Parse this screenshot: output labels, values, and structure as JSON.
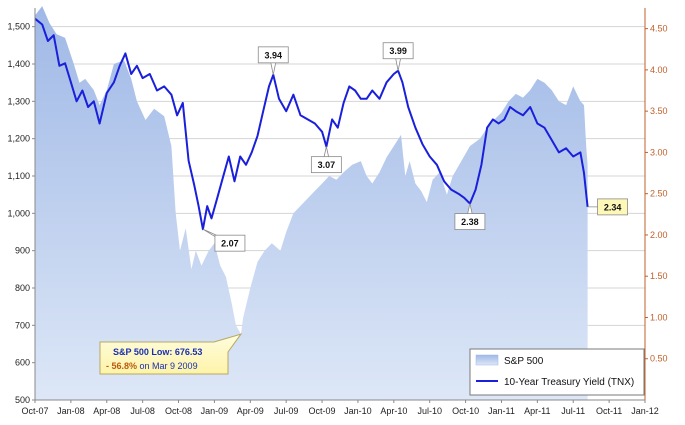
{
  "chart_data": {
    "type": "area+line",
    "x_tick_labels": [
      "Oct-07",
      "Jan-08",
      "Apr-08",
      "Jul-08",
      "Oct-08",
      "Jan-09",
      "Apr-09",
      "Jul-09",
      "Oct-09",
      "Jan-10",
      "Apr-10",
      "Jul-10",
      "Oct-10",
      "Jan-11",
      "Apr-11",
      "Jul-11",
      "Oct-11",
      "Jan-12"
    ],
    "left_axis": {
      "ticks": [
        "500",
        "600",
        "700",
        "800",
        "900",
        "1,000",
        "1,100",
        "1,200",
        "1,300",
        "1,400",
        "1,500"
      ],
      "ylim": [
        500,
        1550
      ]
    },
    "right_axis": {
      "ticks": [
        "0.50",
        "1.00",
        "1.50",
        "2.00",
        "2.50",
        "3.00",
        "3.50",
        "4.00",
        "4.50"
      ],
      "ylim": [
        0,
        4.75
      ]
    },
    "xlim": [
      2007.75,
      2012.0
    ],
    "grid": "horizontal",
    "legend_position": "bottom-right",
    "series": [
      {
        "name": "S&P 500",
        "kind": "area",
        "axis": "left",
        "color": "#b4c8ec",
        "points": [
          [
            2007.75,
            1530
          ],
          [
            2007.8,
            1555
          ],
          [
            2007.85,
            1510
          ],
          [
            2007.9,
            1480
          ],
          [
            2007.96,
            1470
          ],
          [
            2008.02,
            1400
          ],
          [
            2008.06,
            1350
          ],
          [
            2008.1,
            1360
          ],
          [
            2008.16,
            1330
          ],
          [
            2008.2,
            1290
          ],
          [
            2008.25,
            1330
          ],
          [
            2008.3,
            1400
          ],
          [
            2008.37,
            1410
          ],
          [
            2008.42,
            1360
          ],
          [
            2008.46,
            1300
          ],
          [
            2008.52,
            1250
          ],
          [
            2008.58,
            1280
          ],
          [
            2008.65,
            1260
          ],
          [
            2008.7,
            1180
          ],
          [
            2008.73,
            1000
          ],
          [
            2008.76,
            900
          ],
          [
            2008.8,
            960
          ],
          [
            2008.84,
            850
          ],
          [
            2008.87,
            900
          ],
          [
            2008.91,
            860
          ],
          [
            2008.96,
            900
          ],
          [
            2009.0,
            920
          ],
          [
            2009.04,
            860
          ],
          [
            2009.08,
            830
          ],
          [
            2009.12,
            760
          ],
          [
            2009.15,
            700
          ],
          [
            2009.185,
            676.53
          ],
          [
            2009.2,
            720
          ],
          [
            2009.25,
            800
          ],
          [
            2009.3,
            870
          ],
          [
            2009.35,
            900
          ],
          [
            2009.4,
            920
          ],
          [
            2009.46,
            900
          ],
          [
            2009.5,
            950
          ],
          [
            2009.55,
            1000
          ],
          [
            2009.6,
            1020
          ],
          [
            2009.65,
            1040
          ],
          [
            2009.7,
            1060
          ],
          [
            2009.75,
            1080
          ],
          [
            2009.8,
            1100
          ],
          [
            2009.85,
            1090
          ],
          [
            2009.9,
            1110
          ],
          [
            2009.96,
            1130
          ],
          [
            2010.02,
            1140
          ],
          [
            2010.06,
            1100
          ],
          [
            2010.1,
            1080
          ],
          [
            2010.15,
            1110
          ],
          [
            2010.2,
            1150
          ],
          [
            2010.25,
            1180
          ],
          [
            2010.3,
            1210
          ],
          [
            2010.33,
            1100
          ],
          [
            2010.36,
            1140
          ],
          [
            2010.4,
            1080
          ],
          [
            2010.44,
            1060
          ],
          [
            2010.48,
            1030
          ],
          [
            2010.52,
            1090
          ],
          [
            2010.57,
            1110
          ],
          [
            2010.62,
            1050
          ],
          [
            2010.66,
            1100
          ],
          [
            2010.72,
            1140
          ],
          [
            2010.78,
            1180
          ],
          [
            2010.85,
            1200
          ],
          [
            2010.92,
            1240
          ],
          [
            2011.0,
            1270
          ],
          [
            2011.05,
            1300
          ],
          [
            2011.1,
            1320
          ],
          [
            2011.15,
            1310
          ],
          [
            2011.2,
            1330
          ],
          [
            2011.25,
            1360
          ],
          [
            2011.3,
            1350
          ],
          [
            2011.35,
            1330
          ],
          [
            2011.4,
            1300
          ],
          [
            2011.45,
            1290
          ],
          [
            2011.5,
            1340
          ],
          [
            2011.55,
            1300
          ],
          [
            2011.575,
            1290
          ],
          [
            2011.59,
            1180
          ],
          [
            2011.6,
            1130
          ]
        ]
      },
      {
        "name": "10-Year Treasury Yield (TNX)",
        "kind": "line",
        "axis": "right",
        "color": "#1a1fdc",
        "points": [
          [
            2007.75,
            4.62
          ],
          [
            2007.8,
            4.55
          ],
          [
            2007.84,
            4.35
          ],
          [
            2007.88,
            4.42
          ],
          [
            2007.92,
            4.05
          ],
          [
            2007.96,
            4.08
          ],
          [
            2008.0,
            3.85
          ],
          [
            2008.04,
            3.62
          ],
          [
            2008.08,
            3.75
          ],
          [
            2008.12,
            3.55
          ],
          [
            2008.16,
            3.62
          ],
          [
            2008.2,
            3.35
          ],
          [
            2008.25,
            3.72
          ],
          [
            2008.3,
            3.85
          ],
          [
            2008.34,
            4.05
          ],
          [
            2008.38,
            4.2
          ],
          [
            2008.42,
            3.95
          ],
          [
            2008.46,
            4.05
          ],
          [
            2008.5,
            3.9
          ],
          [
            2008.55,
            3.95
          ],
          [
            2008.6,
            3.75
          ],
          [
            2008.65,
            3.8
          ],
          [
            2008.7,
            3.7
          ],
          [
            2008.74,
            3.45
          ],
          [
            2008.78,
            3.6
          ],
          [
            2008.82,
            2.9
          ],
          [
            2008.86,
            2.6
          ],
          [
            2008.89,
            2.35
          ],
          [
            2008.92,
            2.07
          ],
          [
            2008.95,
            2.35
          ],
          [
            2008.98,
            2.2
          ],
          [
            2009.02,
            2.45
          ],
          [
            2009.06,
            2.7
          ],
          [
            2009.1,
            2.95
          ],
          [
            2009.14,
            2.65
          ],
          [
            2009.18,
            2.95
          ],
          [
            2009.22,
            2.85
          ],
          [
            2009.26,
            3.0
          ],
          [
            2009.3,
            3.2
          ],
          [
            2009.34,
            3.5
          ],
          [
            2009.38,
            3.8
          ],
          [
            2009.41,
            3.94
          ],
          [
            2009.45,
            3.65
          ],
          [
            2009.5,
            3.5
          ],
          [
            2009.55,
            3.7
          ],
          [
            2009.6,
            3.45
          ],
          [
            2009.65,
            3.4
          ],
          [
            2009.7,
            3.35
          ],
          [
            2009.75,
            3.25
          ],
          [
            2009.78,
            3.07
          ],
          [
            2009.82,
            3.4
          ],
          [
            2009.86,
            3.3
          ],
          [
            2009.9,
            3.6
          ],
          [
            2009.94,
            3.8
          ],
          [
            2009.98,
            3.75
          ],
          [
            2010.02,
            3.65
          ],
          [
            2010.06,
            3.65
          ],
          [
            2010.1,
            3.75
          ],
          [
            2010.15,
            3.65
          ],
          [
            2010.2,
            3.85
          ],
          [
            2010.25,
            3.95
          ],
          [
            2010.28,
            3.99
          ],
          [
            2010.31,
            3.85
          ],
          [
            2010.35,
            3.55
          ],
          [
            2010.4,
            3.3
          ],
          [
            2010.45,
            3.1
          ],
          [
            2010.5,
            2.95
          ],
          [
            2010.55,
            2.85
          ],
          [
            2010.6,
            2.65
          ],
          [
            2010.65,
            2.55
          ],
          [
            2010.7,
            2.5
          ],
          [
            2010.74,
            2.45
          ],
          [
            2010.78,
            2.38
          ],
          [
            2010.82,
            2.55
          ],
          [
            2010.86,
            2.85
          ],
          [
            2010.9,
            3.3
          ],
          [
            2010.94,
            3.4
          ],
          [
            2010.98,
            3.35
          ],
          [
            2011.02,
            3.4
          ],
          [
            2011.06,
            3.55
          ],
          [
            2011.1,
            3.5
          ],
          [
            2011.15,
            3.45
          ],
          [
            2011.2,
            3.55
          ],
          [
            2011.25,
            3.35
          ],
          [
            2011.3,
            3.3
          ],
          [
            2011.35,
            3.15
          ],
          [
            2011.4,
            3.0
          ],
          [
            2011.45,
            3.05
          ],
          [
            2011.5,
            2.95
          ],
          [
            2011.55,
            3.0
          ],
          [
            2011.575,
            2.75
          ],
          [
            2011.6,
            2.34
          ]
        ]
      }
    ],
    "annotations": [
      {
        "label": "3.94",
        "x": 2009.41,
        "y": 3.94,
        "axis": "right",
        "placement": "above"
      },
      {
        "label": "3.99",
        "x": 2010.28,
        "y": 3.99,
        "axis": "right",
        "placement": "above"
      },
      {
        "label": "2.07",
        "x": 2008.92,
        "y": 2.07,
        "axis": "right",
        "placement": "below-right"
      },
      {
        "label": "3.07",
        "x": 2009.78,
        "y": 3.07,
        "axis": "right",
        "placement": "below"
      },
      {
        "label": "2.38",
        "x": 2010.78,
        "y": 2.38,
        "axis": "right",
        "placement": "below"
      },
      {
        "label": "2.34",
        "x": 2011.6,
        "y": 2.34,
        "axis": "right",
        "placement": "right"
      }
    ],
    "low_callout": {
      "line1": "S&P 500 Low: 676.53",
      "line2_pct": "- 56.8%",
      "line2_rest": " on Mar 9 2009",
      "x": 2009.185,
      "y": 676.53
    }
  }
}
